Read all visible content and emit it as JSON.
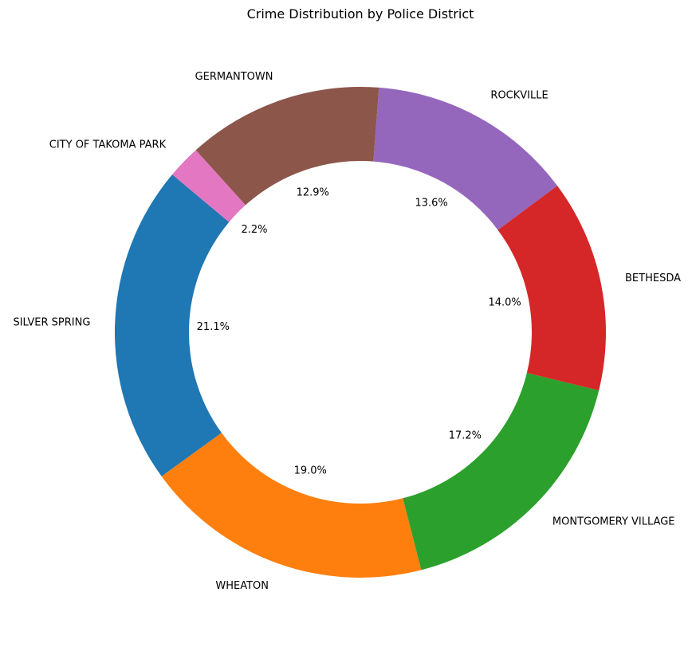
{
  "chart_data": {
    "type": "pie",
    "variant": "donut",
    "title": "Crime Distribution by Police District",
    "slices": [
      {
        "label": "SILVER SPRING",
        "value": 21.1,
        "pct_label": "21.1%",
        "color": "#1f77b4"
      },
      {
        "label": "WHEATON",
        "value": 19.0,
        "pct_label": "19.0%",
        "color": "#ff7f0e"
      },
      {
        "label": "MONTGOMERY VILLAGE",
        "value": 17.2,
        "pct_label": "17.2%",
        "color": "#2ca02c"
      },
      {
        "label": "BETHESDA",
        "value": 14.0,
        "pct_label": "14.0%",
        "color": "#d62728"
      },
      {
        "label": "ROCKVILLE",
        "value": 13.6,
        "pct_label": "13.6%",
        "color": "#9467bd"
      },
      {
        "label": "GERMANTOWN",
        "value": 12.9,
        "pct_label": "12.9%",
        "color": "#8c564b"
      },
      {
        "label": "CITY OF TAKOMA PARK",
        "value": 2.2,
        "pct_label": "2.2%",
        "color": "#e377c2"
      }
    ],
    "start_angle_deg": 140,
    "direction": "counterclockwise"
  }
}
